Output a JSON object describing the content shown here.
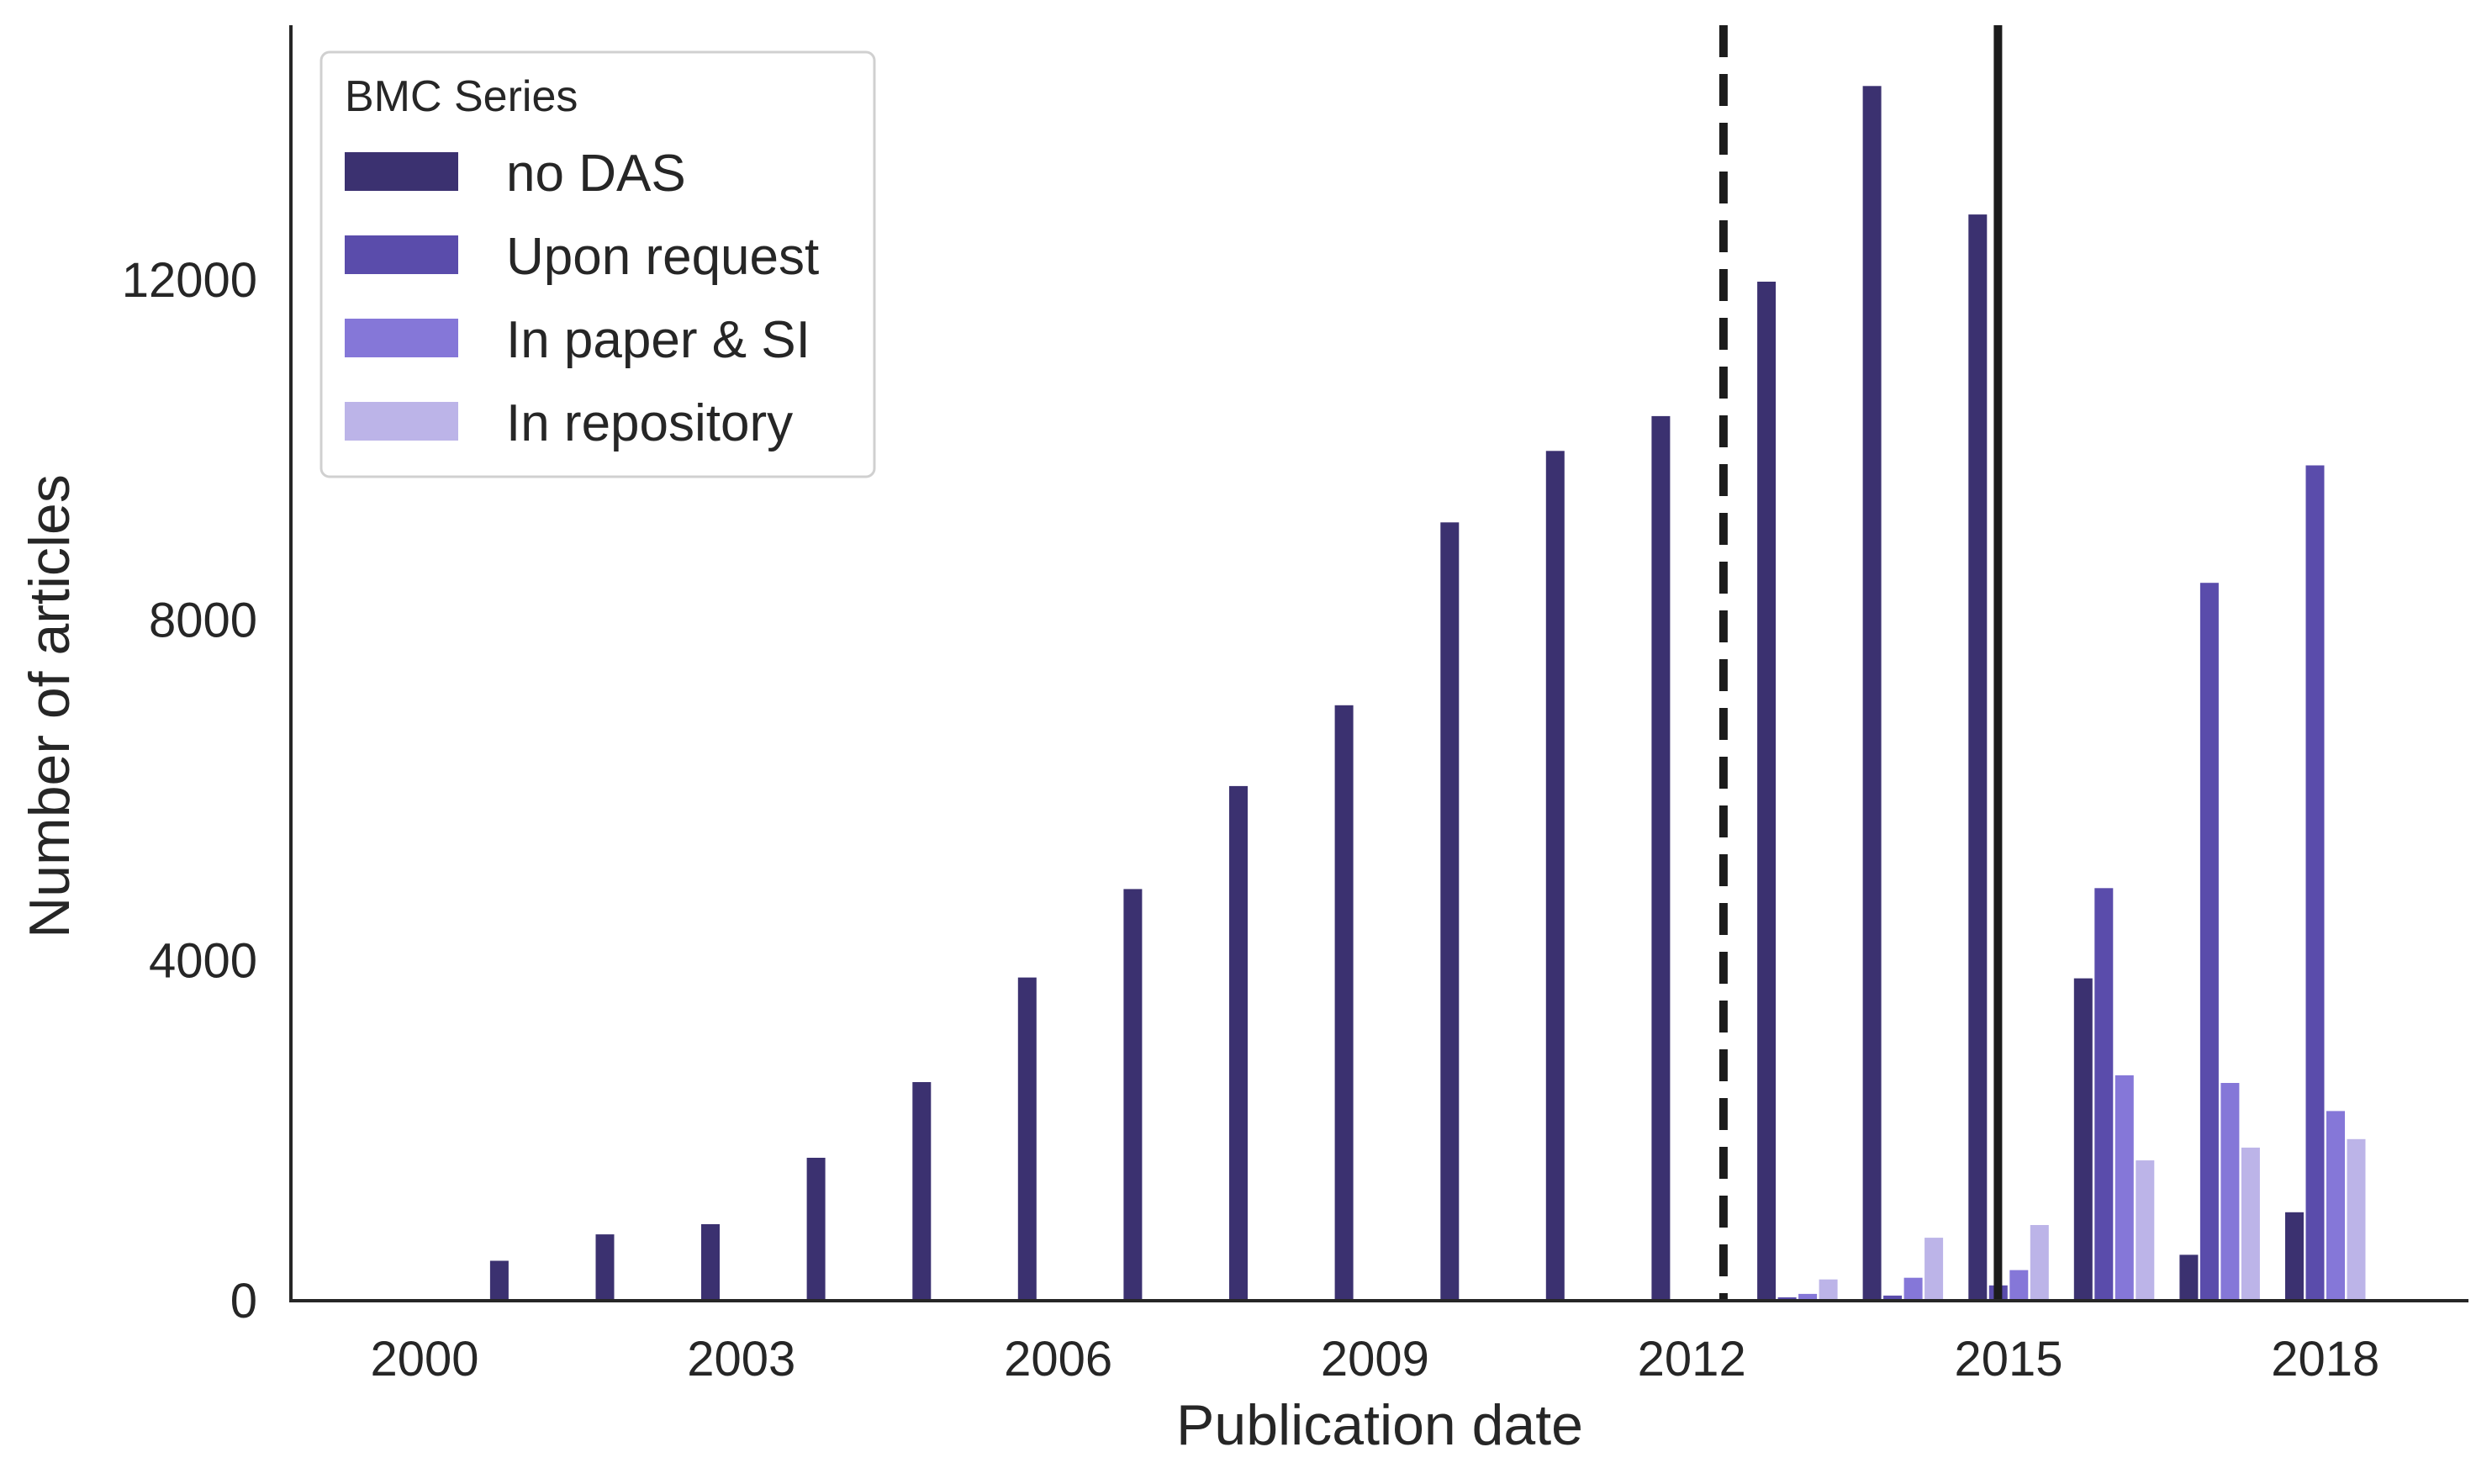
{
  "chart_data": {
    "type": "bar",
    "xlabel": "Publication date",
    "ylabel": "Number of articles",
    "x_categories": [
      2000,
      2001,
      2002,
      2003,
      2004,
      2005,
      2006,
      2007,
      2008,
      2009,
      2010,
      2011,
      2012,
      2013,
      2014,
      2015,
      2016,
      2017,
      2018
    ],
    "x_tick_labels": [
      "2000",
      "2003",
      "2006",
      "2009",
      "2012",
      "2015",
      "2018"
    ],
    "y_ticks": [
      0,
      4000,
      8000,
      12000
    ],
    "y_tick_labels": [
      "0",
      "4000",
      "8000",
      "12000"
    ],
    "ylim": [
      0,
      15000
    ],
    "legend": {
      "title": "BMC Series",
      "position": "top-left"
    },
    "series": [
      {
        "name": "no DAS",
        "color": "#3b3170",
        "values": [
          0,
          470,
          780,
          900,
          1680,
          2570,
          3800,
          4840,
          6050,
          7000,
          9150,
          9990,
          10400,
          11980,
          14280,
          12770,
          3790,
          540,
          1040
        ]
      },
      {
        "name": "Upon request",
        "color": "#5a4cab",
        "values": [
          0,
          0,
          0,
          0,
          0,
          0,
          0,
          0,
          0,
          0,
          0,
          0,
          20,
          40,
          60,
          180,
          4850,
          8440,
          9820
        ]
      },
      {
        "name": "In paper & SI",
        "color": "#8577d8",
        "values": [
          0,
          0,
          0,
          0,
          0,
          0,
          0,
          0,
          0,
          0,
          0,
          0,
          10,
          80,
          270,
          360,
          2650,
          2560,
          2230
        ]
      },
      {
        "name": "In repository",
        "color": "#bcb4e8",
        "values": [
          0,
          0,
          0,
          0,
          0,
          0,
          0,
          0,
          0,
          0,
          0,
          0,
          5,
          250,
          740,
          890,
          1650,
          1800,
          1900
        ]
      }
    ],
    "reference_lines": [
      {
        "x": 2012.3,
        "style": "dashed",
        "color": "#1c1c1c"
      },
      {
        "x": 2014.9,
        "style": "solid",
        "color": "#1c1c1c"
      }
    ],
    "grid": false
  }
}
